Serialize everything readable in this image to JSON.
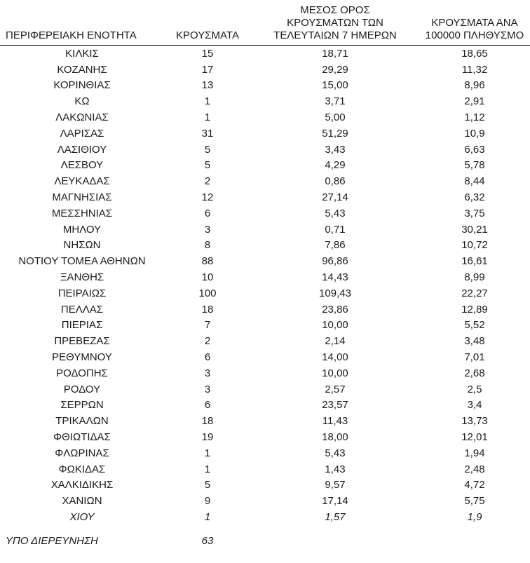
{
  "table": {
    "headers": {
      "region": "ΠΕΡΙΦΕΡΕΙΑΚΗ ΕΝΟΤΗΤΑ",
      "cases": "ΚΡΟΥΣΜΑΤΑ",
      "avg_7day": "ΜΕΣΟΣ ΟΡΟΣ\nΚΡΟΥΣΜΑΤΩΝ ΤΩΝ\nΤΕΛΕΥΤΑΙΩΝ 7 ΗΜΕΡΩΝ",
      "per_100k": "ΚΡΟΥΣΜΑΤΑ ΑΝΑ\n100000 ΠΛΗΘΥΣΜΟ"
    },
    "rows": [
      {
        "name": "ΚΙΛΚΙΣ",
        "cases": "15",
        "avg_7day": "18,71",
        "per_100k": "18,65",
        "italic": false
      },
      {
        "name": "ΚΟΖΑΝΗΣ",
        "cases": "17",
        "avg_7day": "29,29",
        "per_100k": "11,32",
        "italic": false
      },
      {
        "name": "ΚΟΡΙΝΘΙΑΣ",
        "cases": "13",
        "avg_7day": "15,00",
        "per_100k": "8,96",
        "italic": false
      },
      {
        "name": "ΚΩ",
        "cases": "1",
        "avg_7day": "3,71",
        "per_100k": "2,91",
        "italic": false
      },
      {
        "name": "ΛΑΚΩΝΙΑΣ",
        "cases": "1",
        "avg_7day": "5,00",
        "per_100k": "1,12",
        "italic": false
      },
      {
        "name": "ΛΑΡΙΣΑΣ",
        "cases": "31",
        "avg_7day": "51,29",
        "per_100k": "10,9",
        "italic": false
      },
      {
        "name": "ΛΑΣΙΘΙΟΥ",
        "cases": "5",
        "avg_7day": "3,43",
        "per_100k": "6,63",
        "italic": false
      },
      {
        "name": "ΛΕΣΒΟΥ",
        "cases": "5",
        "avg_7day": "4,29",
        "per_100k": "5,78",
        "italic": false
      },
      {
        "name": "ΛΕΥΚΑΔΑΣ",
        "cases": "2",
        "avg_7day": "0,86",
        "per_100k": "8,44",
        "italic": false
      },
      {
        "name": "ΜΑΓΝΗΣΙΑΣ",
        "cases": "12",
        "avg_7day": "27,14",
        "per_100k": "6,32",
        "italic": false
      },
      {
        "name": "ΜΕΣΣΗΝΙΑΣ",
        "cases": "6",
        "avg_7day": "5,43",
        "per_100k": "3,75",
        "italic": false
      },
      {
        "name": "ΜΗΛΟΥ",
        "cases": "3",
        "avg_7day": "0,71",
        "per_100k": "30,21",
        "italic": false
      },
      {
        "name": "ΝΗΣΩΝ",
        "cases": "8",
        "avg_7day": "7,86",
        "per_100k": "10,72",
        "italic": false
      },
      {
        "name": "ΝΟΤΙΟΥ ΤΟΜΕΑ ΑΘΗΝΩΝ",
        "cases": "88",
        "avg_7day": "96,86",
        "per_100k": "16,61",
        "italic": false
      },
      {
        "name": "ΞΑΝΘΗΣ",
        "cases": "10",
        "avg_7day": "14,43",
        "per_100k": "8,99",
        "italic": false
      },
      {
        "name": "ΠΕΙΡΑΙΩΣ",
        "cases": "100",
        "avg_7day": "109,43",
        "per_100k": "22,27",
        "italic": false
      },
      {
        "name": "ΠΕΛΛΑΣ",
        "cases": "18",
        "avg_7day": "23,86",
        "per_100k": "12,89",
        "italic": false
      },
      {
        "name": "ΠΙΕΡΙΑΣ",
        "cases": "7",
        "avg_7day": "10,00",
        "per_100k": "5,52",
        "italic": false
      },
      {
        "name": "ΠΡΕΒΕΖΑΣ",
        "cases": "2",
        "avg_7day": "2,14",
        "per_100k": "3,48",
        "italic": false
      },
      {
        "name": "ΡΕΘΥΜΝΟΥ",
        "cases": "6",
        "avg_7day": "14,00",
        "per_100k": "7,01",
        "italic": false
      },
      {
        "name": "ΡΟΔΟΠΗΣ",
        "cases": "3",
        "avg_7day": "10,00",
        "per_100k": "2,68",
        "italic": false
      },
      {
        "name": "ΡΟΔΟΥ",
        "cases": "3",
        "avg_7day": "2,57",
        "per_100k": "2,5",
        "italic": false
      },
      {
        "name": "ΣΕΡΡΩΝ",
        "cases": "6",
        "avg_7day": "23,57",
        "per_100k": "3,4",
        "italic": false
      },
      {
        "name": "ΤΡΙΚΑΛΩΝ",
        "cases": "18",
        "avg_7day": "11,43",
        "per_100k": "13,73",
        "italic": false
      },
      {
        "name": "ΦΘΙΩΤΙΔΑΣ",
        "cases": "19",
        "avg_7day": "18,00",
        "per_100k": "12,01",
        "italic": false
      },
      {
        "name": "ΦΛΩΡΙΝΑΣ",
        "cases": "1",
        "avg_7day": "5,43",
        "per_100k": "1,94",
        "italic": false
      },
      {
        "name": "ΦΩΚΙΔΑΣ",
        "cases": "1",
        "avg_7day": "1,43",
        "per_100k": "2,48",
        "italic": false
      },
      {
        "name": "ΧΑΛΚΙΔΙΚΗΣ",
        "cases": "5",
        "avg_7day": "9,57",
        "per_100k": "4,72",
        "italic": false
      },
      {
        "name": "ΧΑΝΙΩΝ",
        "cases": "9",
        "avg_7day": "17,14",
        "per_100k": "5,75",
        "italic": false
      },
      {
        "name": "ΧΙΟΥ",
        "cases": "1",
        "avg_7day": "1,57",
        "per_100k": "1,9",
        "italic": true
      }
    ],
    "footer": {
      "label": "ΥΠΟ ΔΙΕΡΕΥΝΗΣΗ",
      "cases": "63"
    }
  },
  "colors": {
    "text": "#1a1a1a",
    "background": "#ffffff",
    "header_rule": "#000000"
  }
}
